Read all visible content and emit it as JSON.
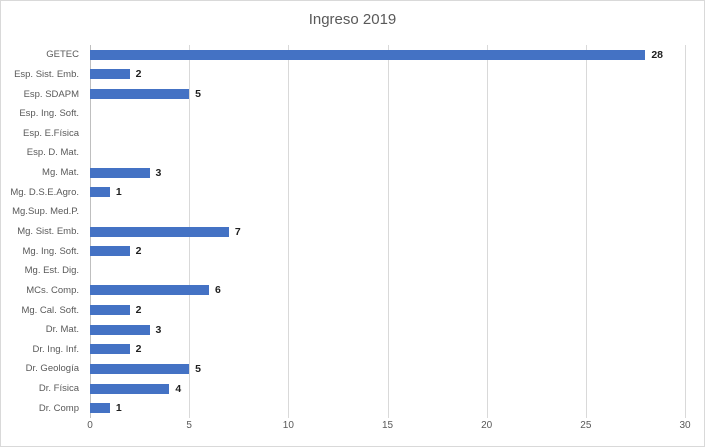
{
  "chart_data": {
    "type": "bar",
    "orientation": "horizontal",
    "title": "Ingreso 2019",
    "categories": [
      "GETEC",
      "Esp. Sist. Emb.",
      "Esp. SDAPM",
      "Esp. Ing. Soft.",
      "Esp. E.Física",
      "Esp. D. Mat.",
      "Mg. Mat.",
      "Mg. D.S.E.Agro.",
      "Mg.Sup. Med.P.",
      "Mg. Sist. Emb.",
      "Mg. Ing. Soft.",
      "Mg. Est. Dig.",
      "MCs. Comp.",
      "Mg. Cal. Soft.",
      "Dr. Mat.",
      "Dr. Ing. Inf.",
      "Dr. Geología",
      "Dr. Física",
      "Dr. Comp"
    ],
    "values": [
      28,
      2,
      5,
      0,
      0,
      0,
      3,
      1,
      0,
      7,
      2,
      0,
      6,
      2,
      3,
      2,
      5,
      4,
      1
    ],
    "data_labels_shown_for_zero": false,
    "xlabel": "",
    "ylabel": "",
    "xlim": [
      0,
      30
    ],
    "xticks": [
      0,
      5,
      10,
      15,
      20,
      25,
      30
    ],
    "grid": true,
    "legend": "none",
    "colors": {
      "bar": "#4472c4",
      "gridline": "#d9d9d9",
      "axis_line": "#bfbfbf",
      "axis_text": "#595959",
      "title_text": "#595959",
      "value_label_text": "#1f1f1f",
      "background": "#ffffff",
      "chart_border": "#d9d9d9"
    }
  }
}
